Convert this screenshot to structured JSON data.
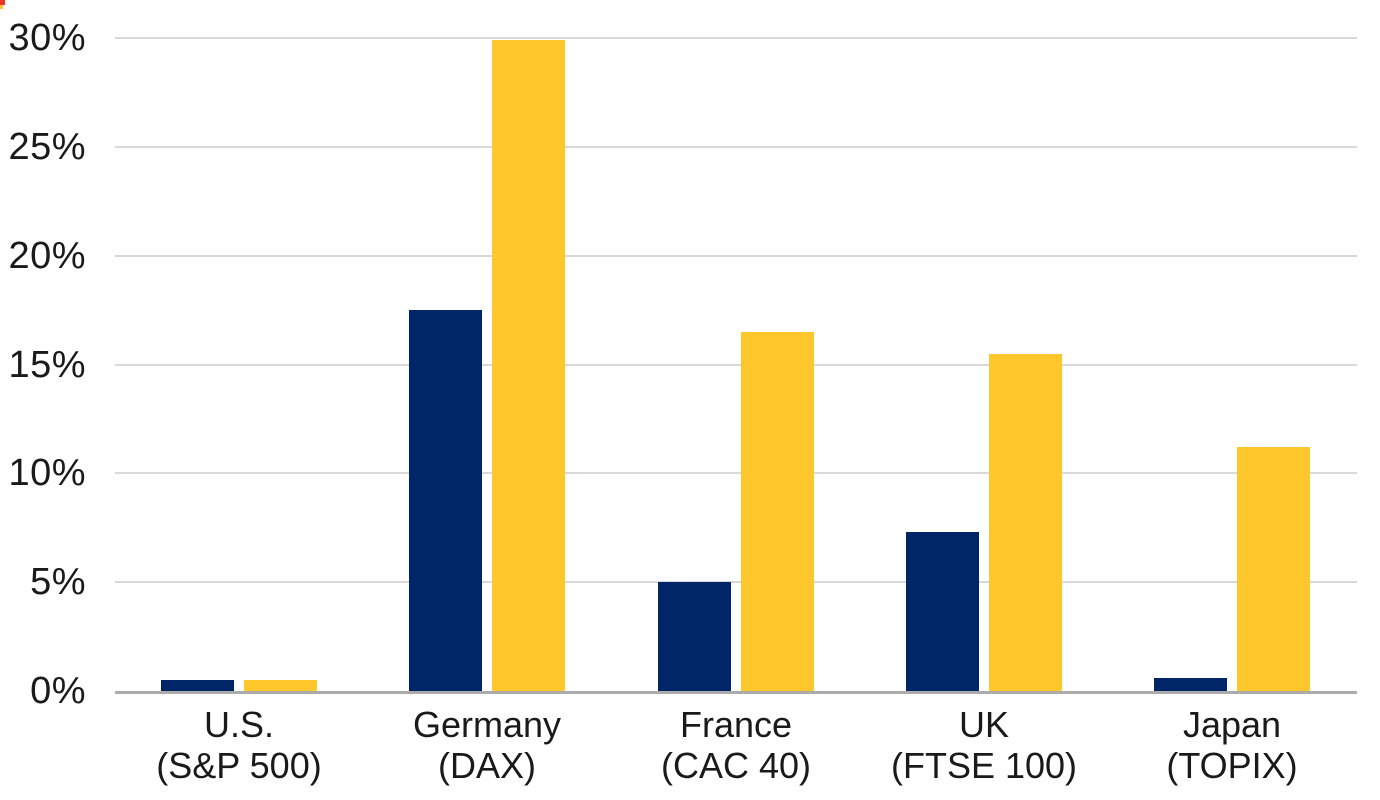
{
  "chart_data": {
    "type": "bar",
    "title": "",
    "categories": [
      "U.S. (S&P 500)",
      "Germany (DAX)",
      "France (CAC 40)",
      "UK (FTSE 100)",
      "Japan (TOPIX)"
    ],
    "category_labels": [
      {
        "line1": "U.S.",
        "line2": "(S&P 500)"
      },
      {
        "line1": "Germany",
        "line2": "(DAX)"
      },
      {
        "line1": "France",
        "line2": "(CAC 40)"
      },
      {
        "line1": "UK",
        "line2": "(FTSE 100)"
      },
      {
        "line1": "Japan",
        "line2": "(TOPIX)"
      }
    ],
    "category_slugs": [
      "us",
      "germany",
      "france",
      "uk",
      "japan"
    ],
    "series": [
      {
        "name": "navy",
        "color": "#002668",
        "values": [
          0.5,
          17.5,
          5.0,
          7.3,
          0.6
        ]
      },
      {
        "name": "gold",
        "color": "#FFC72C",
        "values": [
          0.5,
          29.9,
          16.5,
          15.5,
          11.2
        ]
      }
    ],
    "ylim": [
      0,
      30
    ],
    "yticks": [
      0,
      5,
      10,
      15,
      20,
      25,
      30
    ],
    "ytick_labels": [
      "0%",
      "5%",
      "10%",
      "15%",
      "20%",
      "25%",
      "30%"
    ],
    "xlabel": "",
    "ylabel": "",
    "grid": "horizontal",
    "legend": "none",
    "colors": {
      "gridline": "#d9d9d9",
      "baseline": "#ababab",
      "text": "#1a1a1a",
      "corner_artifact_red": "#ee3524",
      "corner_artifact_yellow": "#FFC72C"
    }
  }
}
